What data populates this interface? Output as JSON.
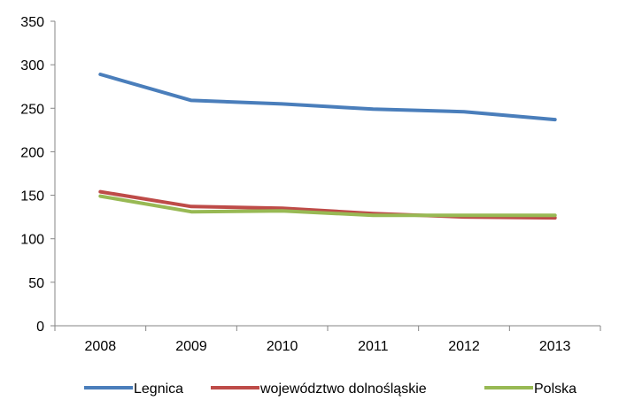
{
  "chart_data": {
    "type": "line",
    "title": "",
    "xlabel": "",
    "ylabel": "",
    "categories": [
      "2008",
      "2009",
      "2010",
      "2011",
      "2012",
      "2013"
    ],
    "ylim": [
      0,
      350
    ],
    "yticks": [
      0,
      50,
      100,
      150,
      200,
      250,
      300,
      350
    ],
    "grid": false,
    "legend_position": "bottom",
    "series": [
      {
        "name": "Legnica",
        "color": "#4A7EBB",
        "values": [
          289,
          259,
          255,
          249,
          246,
          237
        ]
      },
      {
        "name": "województwo dolnośląskie",
        "color": "#BE4B48",
        "values": [
          154,
          137,
          135,
          129,
          125,
          124
        ]
      },
      {
        "name": "Polska",
        "color": "#98B954",
        "values": [
          149,
          131,
          132,
          127,
          127,
          127
        ]
      }
    ]
  }
}
